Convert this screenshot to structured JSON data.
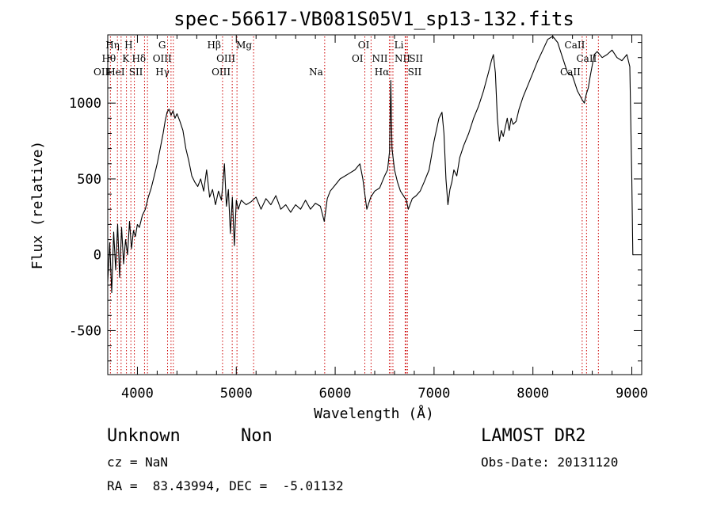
{
  "chart_data": {
    "type": "line",
    "title": "spec-56617-VB081S05V1_sp13-132.fits",
    "xlabel": "Wavelength (Å)",
    "ylabel": "Flux (relative)",
    "xlim": [
      3700,
      9100
    ],
    "ylim": [
      -790,
      1450
    ],
    "xticks": [
      4000,
      5000,
      6000,
      7000,
      8000,
      9000
    ],
    "yticks": [
      -500,
      0,
      500,
      1000
    ],
    "line_color": "#000000",
    "marker_color": "#cc0000",
    "spectrum": {
      "x": [
        3700,
        3720,
        3740,
        3760,
        3780,
        3800,
        3820,
        3840,
        3860,
        3880,
        3900,
        3920,
        3940,
        3960,
        3980,
        4000,
        4020,
        4050,
        4080,
        4110,
        4140,
        4170,
        4200,
        4230,
        4260,
        4280,
        4300,
        4320,
        4340,
        4360,
        4380,
        4400,
        4430,
        4460,
        4490,
        4520,
        4550,
        4580,
        4610,
        4640,
        4670,
        4700,
        4730,
        4760,
        4790,
        4820,
        4850,
        4880,
        4900,
        4920,
        4940,
        4960,
        4980,
        5000,
        5020,
        5050,
        5100,
        5150,
        5200,
        5250,
        5300,
        5350,
        5400,
        5450,
        5500,
        5550,
        5600,
        5650,
        5700,
        5750,
        5800,
        5850,
        5890,
        5920,
        5950,
        6000,
        6050,
        6100,
        6150,
        6200,
        6250,
        6280,
        6320,
        6360,
        6400,
        6450,
        6500,
        6530,
        6550,
        6563,
        6575,
        6600,
        6630,
        6660,
        6700,
        6720,
        6740,
        6780,
        6820,
        6860,
        6900,
        6950,
        7000,
        7050,
        7080,
        7100,
        7120,
        7140,
        7160,
        7180,
        7200,
        7230,
        7260,
        7300,
        7350,
        7400,
        7450,
        7500,
        7550,
        7580,
        7600,
        7620,
        7640,
        7660,
        7680,
        7700,
        7720,
        7740,
        7760,
        7780,
        7800,
        7830,
        7860,
        7900,
        7950,
        8000,
        8050,
        8100,
        8150,
        8200,
        8250,
        8300,
        8350,
        8400,
        8450,
        8500,
        8520,
        8540,
        8560,
        8580,
        8600,
        8620,
        8650,
        8700,
        8750,
        8800,
        8850,
        8900,
        8950,
        8980,
        9000,
        9010,
        9020
      ],
      "y": [
        -180,
        80,
        -250,
        150,
        -100,
        200,
        -150,
        180,
        -60,
        100,
        0,
        220,
        40,
        160,
        120,
        200,
        180,
        260,
        300,
        380,
        440,
        520,
        600,
        700,
        800,
        880,
        940,
        960,
        920,
        950,
        900,
        930,
        880,
        820,
        700,
        620,
        520,
        480,
        450,
        500,
        420,
        560,
        380,
        430,
        330,
        420,
        360,
        600,
        320,
        430,
        140,
        380,
        60,
        360,
        300,
        360,
        330,
        350,
        380,
        300,
        370,
        330,
        390,
        300,
        330,
        280,
        330,
        300,
        360,
        300,
        340,
        320,
        220,
        370,
        420,
        460,
        500,
        520,
        540,
        560,
        600,
        500,
        300,
        380,
        420,
        440,
        520,
        560,
        680,
        1150,
        700,
        560,
        480,
        420,
        380,
        360,
        300,
        370,
        390,
        420,
        480,
        560,
        750,
        900,
        940,
        800,
        500,
        330,
        430,
        480,
        560,
        520,
        640,
        720,
        800,
        900,
        980,
        1080,
        1200,
        1280,
        1320,
        1200,
        900,
        750,
        820,
        780,
        840,
        900,
        820,
        900,
        860,
        880,
        960,
        1040,
        1120,
        1200,
        1280,
        1350,
        1420,
        1440,
        1400,
        1300,
        1200,
        1180,
        1080,
        1020,
        1000,
        1060,
        1100,
        1180,
        1250,
        1320,
        1340,
        1300,
        1320,
        1350,
        1300,
        1280,
        1320,
        1240,
        500,
        0,
        0
      ]
    },
    "lines": [
      {
        "name": "OII",
        "wave": 3727,
        "row": 3,
        "side": "left"
      },
      {
        "name": "Hθ",
        "wave": 3798,
        "row": 2,
        "side": "left"
      },
      {
        "name": "Hη",
        "wave": 3835,
        "row": 1,
        "side": "left"
      },
      {
        "name": "HeI",
        "wave": 3889,
        "row": 3,
        "side": "left"
      },
      {
        "name": "K",
        "wave": 3934,
        "row": 2,
        "side": "left"
      },
      {
        "name": "H",
        "wave": 3969,
        "row": 1,
        "side": "left"
      },
      {
        "name": "SII",
        "wave": 4072,
        "row": 3,
        "side": "left"
      },
      {
        "name": "Hδ",
        "wave": 4102,
        "row": 2,
        "side": "left"
      },
      {
        "name": "G",
        "wave": 4305,
        "row": 1,
        "side": "left"
      },
      {
        "name": "Hγ",
        "wave": 4340,
        "row": 3,
        "side": "left"
      },
      {
        "name": "OIII",
        "wave": 4363,
        "row": 2,
        "side": "left"
      },
      {
        "name": "Hβ",
        "wave": 4861,
        "row": 1,
        "side": "left"
      },
      {
        "name": "OIII",
        "wave": 4959,
        "row": 3,
        "side": "left"
      },
      {
        "name": "OIII",
        "wave": 5007,
        "row": 2,
        "side": "left"
      },
      {
        "name": "Mg",
        "wave": 5175,
        "row": 1,
        "side": "left"
      },
      {
        "name": "Na",
        "wave": 5894,
        "row": 3,
        "side": "left"
      },
      {
        "name": "OI",
        "wave": 6300,
        "row": 2,
        "side": "left"
      },
      {
        "name": "OI",
        "wave": 6363,
        "row": 1,
        "side": "left"
      },
      {
        "name": "NII",
        "wave": 6548,
        "row": 2,
        "side": "left"
      },
      {
        "name": "Hα",
        "wave": 6563,
        "row": 3,
        "side": "left"
      },
      {
        "name": "NII",
        "wave": 6584,
        "row": 2,
        "side": "right"
      },
      {
        "name": "Li",
        "wave": 6708,
        "row": 1,
        "side": "left"
      },
      {
        "name": "SII",
        "wave": 6717,
        "row": 3,
        "side": "right"
      },
      {
        "name": "SII",
        "wave": 6731,
        "row": 2,
        "side": "right"
      },
      {
        "name": "CaII",
        "wave": 8498,
        "row": 3,
        "side": "left"
      },
      {
        "name": "CaII",
        "wave": 8542,
        "row": 1,
        "side": "left"
      },
      {
        "name": "CaII",
        "wave": 8662,
        "row": 2,
        "side": "left"
      }
    ]
  },
  "footer": {
    "object_class": "Unknown",
    "object_subclass": "Non",
    "survey": "LAMOST DR2",
    "cz": "cz = NaN",
    "obs_date": "Obs-Date: 20131120",
    "coords": "RA =  83.43994, DEC =  -5.01132"
  }
}
